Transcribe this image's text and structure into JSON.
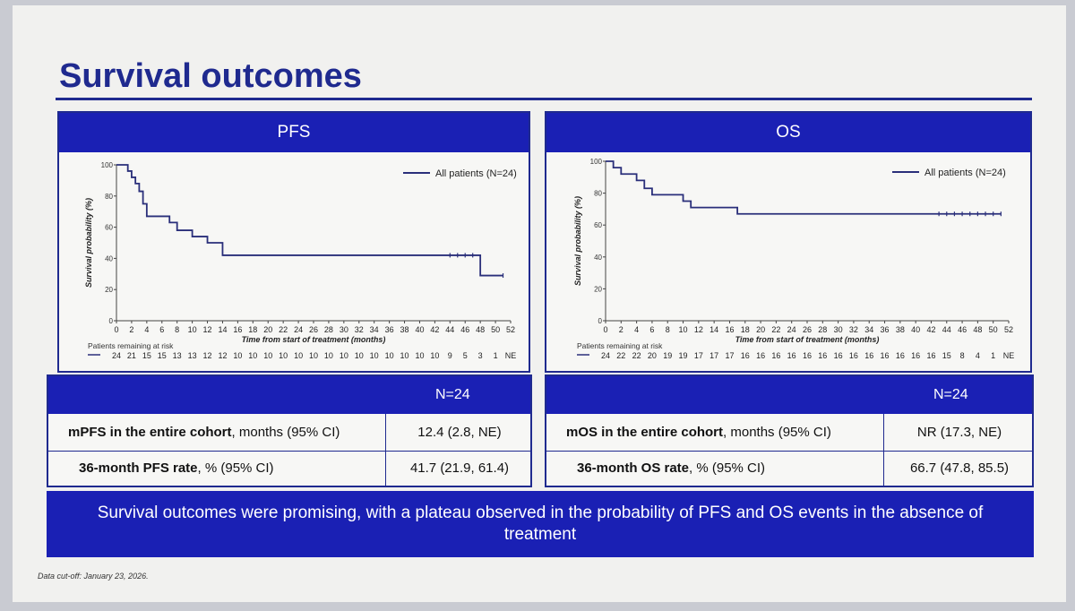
{
  "title": "Survival outcomes",
  "panels": [
    {
      "header": "PFS",
      "legend": "All patients (N=24)"
    },
    {
      "header": "OS",
      "legend": "All patients (N=24)"
    }
  ],
  "risk_label": "Patients remaining at risk",
  "chart_data": [
    {
      "type": "line",
      "title": "PFS",
      "xlabel": "Time from start of treatment (months)",
      "ylabel": "Survival probability (%)",
      "xlim": [
        0,
        52
      ],
      "ylim": [
        0,
        100
      ],
      "x_ticks": [
        0,
        2,
        4,
        6,
        8,
        10,
        12,
        14,
        16,
        18,
        20,
        22,
        24,
        26,
        28,
        30,
        32,
        34,
        36,
        38,
        40,
        42,
        44,
        46,
        48,
        50,
        52
      ],
      "y_ticks": [
        0,
        20,
        40,
        60,
        80,
        100
      ],
      "legend_position": "top-right",
      "series": [
        {
          "name": "All patients (N=24)",
          "x": [
            0,
            1,
            1.5,
            2,
            2.5,
            3,
            3.5,
            4,
            7,
            8,
            10,
            12,
            14,
            14,
            48,
            48,
            51
          ],
          "y": [
            100,
            100,
            96,
            92,
            88,
            83,
            75,
            67,
            63,
            58,
            54,
            50,
            46,
            42,
            42,
            29,
            29
          ],
          "censored_x": [
            44,
            45,
            46,
            47,
            51
          ]
        }
      ],
      "at_risk": [
        "24",
        "21",
        "15",
        "15",
        "13",
        "13",
        "12",
        "12",
        "10",
        "10",
        "10",
        "10",
        "10",
        "10",
        "10",
        "10",
        "10",
        "10",
        "10",
        "10",
        "10",
        "10",
        "9",
        "5",
        "3",
        "1",
        "NE"
      ]
    },
    {
      "type": "line",
      "title": "OS",
      "xlabel": "Time from start of treatment (months)",
      "ylabel": "Survival probability (%)",
      "xlim": [
        0,
        52
      ],
      "ylim": [
        0,
        100
      ],
      "x_ticks": [
        0,
        2,
        4,
        6,
        8,
        10,
        12,
        14,
        16,
        18,
        20,
        22,
        24,
        26,
        28,
        30,
        32,
        34,
        36,
        38,
        40,
        42,
        44,
        46,
        48,
        50,
        52
      ],
      "y_ticks": [
        0,
        20,
        40,
        60,
        80,
        100
      ],
      "legend_position": "top-right",
      "series": [
        {
          "name": "All patients (N=24)",
          "x": [
            0,
            1,
            2,
            4,
            5,
            6,
            8,
            10,
            11,
            13,
            17,
            51
          ],
          "y": [
            100,
            96,
            92,
            88,
            83,
            79,
            79,
            75,
            71,
            71,
            67,
            67
          ],
          "censored_x": [
            43,
            44,
            45,
            46,
            47,
            48,
            49,
            50,
            51
          ]
        }
      ],
      "at_risk": [
        "24",
        "22",
        "22",
        "20",
        "19",
        "19",
        "17",
        "17",
        "17",
        "16",
        "16",
        "16",
        "16",
        "16",
        "16",
        "16",
        "16",
        "16",
        "16",
        "16",
        "16",
        "16",
        "15",
        "8",
        "4",
        "1",
        "NE"
      ]
    }
  ],
  "stats_left": {
    "col_header": "N=24",
    "rows": [
      {
        "label_bold": "mPFS in the entire cohort",
        "label_rest": ", months (95% CI)",
        "value": "12.4 (2.8, NE)"
      },
      {
        "label_bold": "36-month PFS rate",
        "label_rest": ", % (95% CI)",
        "value": "41.7 (21.9, 61.4)"
      }
    ]
  },
  "stats_right": {
    "col_header": "N=24",
    "rows": [
      {
        "label_bold": "mOS in the entire cohort",
        "label_rest": ", months (95% CI)",
        "value": "NR (17.3, NE)"
      },
      {
        "label_bold": "36-month OS rate",
        "label_rest": ", % (95% CI)",
        "value": "66.7 (47.8, 85.5)"
      }
    ]
  },
  "banner": "Survival outcomes were promising, with a plateau observed in the probability of PFS and OS events in the absence of treatment",
  "footnote": "Data cut-off: January 23, 2026.",
  "colors": {
    "brand_blue": "#1a20b4",
    "curve": "#2a2f7a",
    "title": "#1f2a8f"
  }
}
